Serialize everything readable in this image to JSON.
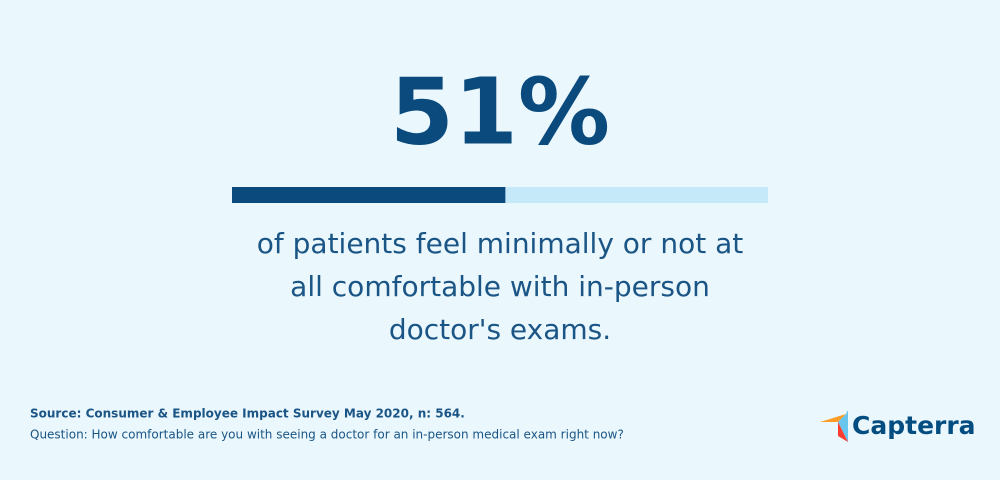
{
  "chart_data": {
    "type": "progress",
    "value": 51,
    "value_label": "51%",
    "xlim": [
      0,
      100
    ],
    "color": "#0b4a7c",
    "track_color": "#c6e9f9",
    "subtitle_lines": [
      "of patients feel minimally or not at",
      "all comfortable with in-person",
      "doctor's exams."
    ],
    "source": "Source: Consumer & Employee Impact Survey May 2020, n: 564.",
    "question": "Question: How comfortable are you with seeing a doctor for an in-person medical exam right now?",
    "logo": "Capterra"
  }
}
